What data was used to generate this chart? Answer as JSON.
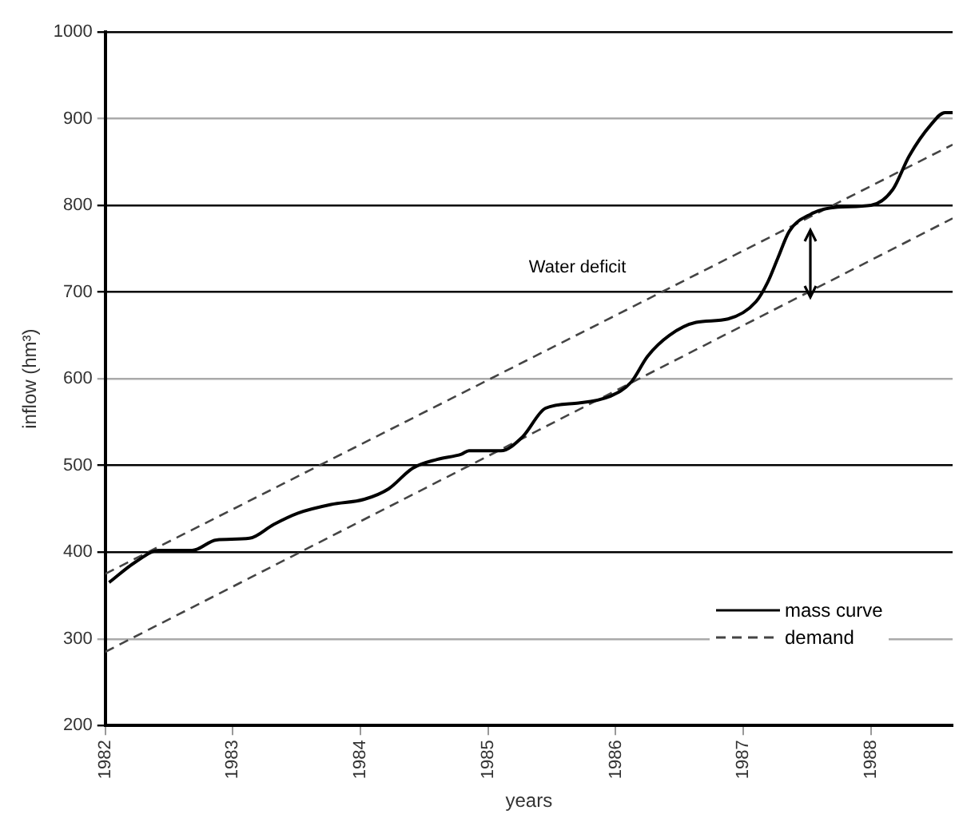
{
  "chart_data": {
    "type": "line",
    "xlabel": "years",
    "ylabel": "inflow (hm³)",
    "xlim": [
      1982,
      1988.64
    ],
    "xticks": [
      1982,
      1983,
      1984,
      1985,
      1986,
      1987,
      1988
    ],
    "ylim": [
      200,
      1000
    ],
    "yticks": [
      200,
      300,
      400,
      500,
      600,
      700,
      800,
      900,
      1000
    ],
    "grid": "y",
    "legend": "bottom right",
    "marker": "none",
    "annotations": [
      "Water deficit"
    ],
    "series": [
      {
        "name": "mass curve",
        "color": "#000000",
        "line_style": "solid",
        "x": [
          1982.03,
          1982.23,
          1982.42,
          1982.68,
          1982.87,
          1983.13,
          1983.32,
          1983.51,
          1983.77,
          1984.03,
          1984.22,
          1984.41,
          1984.6,
          1984.79,
          1984.85,
          1985.1,
          1985.27,
          1985.45,
          1985.71,
          1985.96,
          1986.12,
          1986.25,
          1986.42,
          1986.63,
          1986.88,
          1987.1,
          1987.19,
          1987.27,
          1987.36,
          1987.53,
          1987.74,
          1988.0,
          1988.17,
          1988.3,
          1988.47,
          1988.58,
          1988.64
        ],
        "values": [
          365,
          388,
          402,
          402,
          414,
          416,
          432,
          445,
          455,
          461,
          473,
          497,
          507,
          513,
          517,
          517,
          533,
          566,
          572,
          580,
          596,
          626,
          650,
          665,
          669,
          689,
          711,
          739,
          770,
          790,
          798,
          800,
          818,
          857,
          893,
          907,
          907
        ]
      },
      {
        "name": "demand",
        "color": "#444444",
        "line_style": "dashed",
        "x": [
          1982,
          1988.64
        ],
        "values": [
          375,
          870
        ]
      },
      {
        "color": "#444444",
        "line_style": "dashed",
        "x": [
          1982,
          1988.64
        ],
        "values": [
          285,
          785
        ]
      }
    ]
  }
}
